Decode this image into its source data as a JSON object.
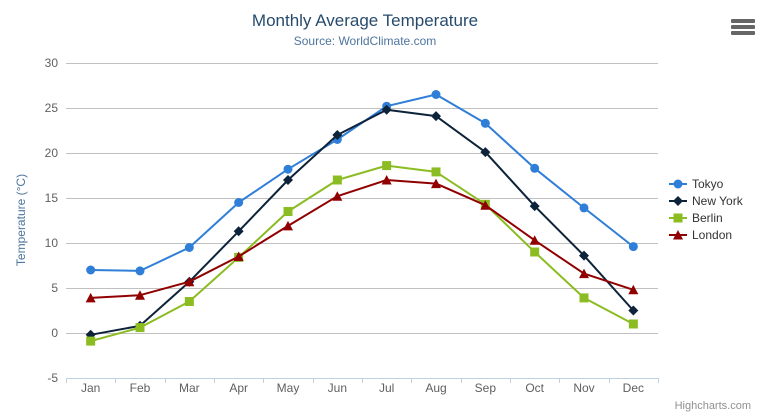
{
  "header": {
    "title": "Monthly Average Temperature",
    "subtitle": "Source: WorldClimate.com"
  },
  "export_menu": {
    "icon": "hamburger-menu-icon"
  },
  "credits": {
    "label": "Highcharts.com"
  },
  "colors": {
    "title": "#274b6d",
    "subtitle": "#4d759e",
    "axis_label": "#606060",
    "axis_title": "#4d759e",
    "grid_line": "#c0c0c0",
    "axis_line": "#c0d0e0",
    "legend_text": "#333333",
    "credits_text": "#909090",
    "background": "#ffffff"
  },
  "chart_data": {
    "type": "line",
    "title": "Monthly Average Temperature",
    "subtitle": "Source: WorldClimate.com",
    "xlabel": "",
    "ylabel": "Temperature (°C)",
    "ylim": [
      -5,
      30
    ],
    "ytick_step": 5,
    "grid": true,
    "legend_position": "right",
    "categories": [
      "Jan",
      "Feb",
      "Mar",
      "Apr",
      "May",
      "Jun",
      "Jul",
      "Aug",
      "Sep",
      "Oct",
      "Nov",
      "Dec"
    ],
    "series": [
      {
        "name": "Tokyo",
        "color": "#2f7ed8",
        "marker": "circle",
        "values": [
          7.0,
          6.9,
          9.5,
          14.5,
          18.2,
          21.5,
          25.2,
          26.5,
          23.3,
          18.3,
          13.9,
          9.6
        ]
      },
      {
        "name": "New York",
        "color": "#0d233a",
        "marker": "diamond",
        "values": [
          -0.2,
          0.8,
          5.7,
          11.3,
          17.0,
          22.0,
          24.8,
          24.1,
          20.1,
          14.1,
          8.6,
          2.5
        ]
      },
      {
        "name": "Berlin",
        "color": "#8bbc21",
        "marker": "square",
        "values": [
          -0.9,
          0.6,
          3.5,
          8.4,
          13.5,
          17.0,
          18.6,
          17.9,
          14.3,
          9.0,
          3.9,
          1.0
        ]
      },
      {
        "name": "London",
        "color": "#910000",
        "marker": "triangle",
        "values": [
          3.9,
          4.2,
          5.7,
          8.5,
          11.9,
          15.2,
          17.0,
          16.6,
          14.2,
          10.3,
          6.6,
          4.8
        ]
      }
    ]
  }
}
